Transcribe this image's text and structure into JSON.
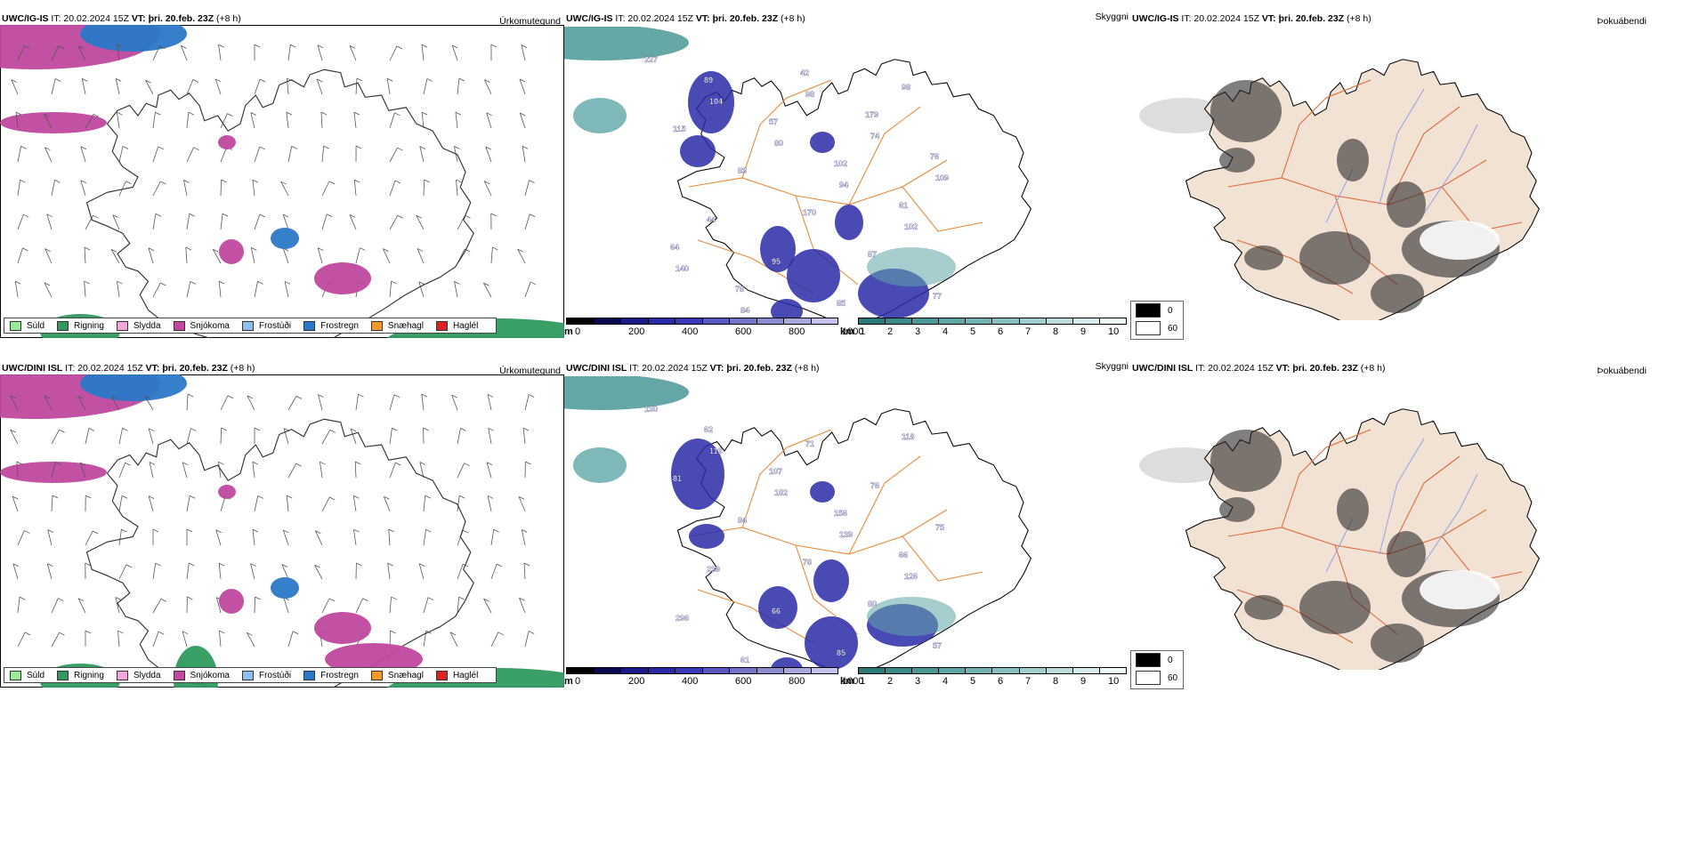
{
  "rows": [
    {
      "id": "ig",
      "model": "UWC/IG-IS",
      "it": "IT: 20.02.2024 15Z",
      "vt_label": "VT:",
      "vt": "þri. 20.feb. 23Z",
      "lead": "(+8 h)",
      "precip_title": "Úrkomutegund",
      "cloud_title": "Skyggni",
      "fog_title": "Þokuábendi",
      "visibility_labels": [
        "227",
        "104",
        "80",
        "94",
        "102",
        "140",
        "84",
        "98",
        "74",
        "109",
        "44",
        "95",
        "85",
        "98",
        "115",
        "83",
        "170",
        "87",
        "77",
        "89",
        "57",
        "102",
        "61",
        "64",
        "78",
        "42",
        "179",
        "76"
      ]
    },
    {
      "id": "dini",
      "model": "UWC/DINI ISL",
      "it": "IT: 20.02.2024 15Z",
      "vt_label": "VT:",
      "vt": "þri. 20.feb. 23Z",
      "lead": "(+8 h)",
      "precip_title": "Úrkomutegund",
      "cloud_title": "Skyggni",
      "fog_title": "Þokuábendi",
      "visibility_labels": [
        "130",
        "113",
        "182",
        "139",
        "126",
        "296",
        "61",
        "71",
        "76",
        "75",
        "239",
        "66",
        "85",
        "118",
        "81",
        "84",
        "78",
        "80",
        "57",
        "62",
        "107",
        "156",
        "66"
      ]
    }
  ],
  "precip_legend": [
    {
      "label": "Súld",
      "color": "#9ae89a"
    },
    {
      "label": "Rigning",
      "color": "#2e9a5e"
    },
    {
      "label": "Slydda",
      "color": "#f0a8d8"
    },
    {
      "label": "Snjókoma",
      "color": "#c0489e"
    },
    {
      "label": "Frostúði",
      "color": "#8cc0f0"
    },
    {
      "label": "Frostregn",
      "color": "#2a78c8"
    },
    {
      "label": "Snæhagl",
      "color": "#f29a2a"
    },
    {
      "label": "Haglél",
      "color": "#e02020"
    }
  ],
  "cloud_base_bar": {
    "unit": "m",
    "ticks": [
      "0",
      "200",
      "400",
      "600",
      "800",
      "1000"
    ],
    "colors": [
      "#000000",
      "#0a0a50",
      "#1a1a8a",
      "#2a2aa8",
      "#3838b8",
      "#5858c0",
      "#7474c8",
      "#8c8cd0",
      "#a8a8dc",
      "#c4c4ea"
    ]
  },
  "visibility_bar": {
    "unit": "km",
    "ticks": [
      "1",
      "2",
      "3",
      "4",
      "5",
      "6",
      "7",
      "8",
      "9",
      "10"
    ],
    "colors": [
      "#2a7a7a",
      "#3a8a8a",
      "#4a9898",
      "#5ea6a6",
      "#72b2b2",
      "#88c0c0",
      "#a0cece",
      "#bcdcdc",
      "#d6ecec",
      "#eef8f8"
    ]
  },
  "fog_legend": [
    {
      "label": "0",
      "color": "#000000"
    },
    {
      "label": "60",
      "color": "#ffffff"
    }
  ]
}
